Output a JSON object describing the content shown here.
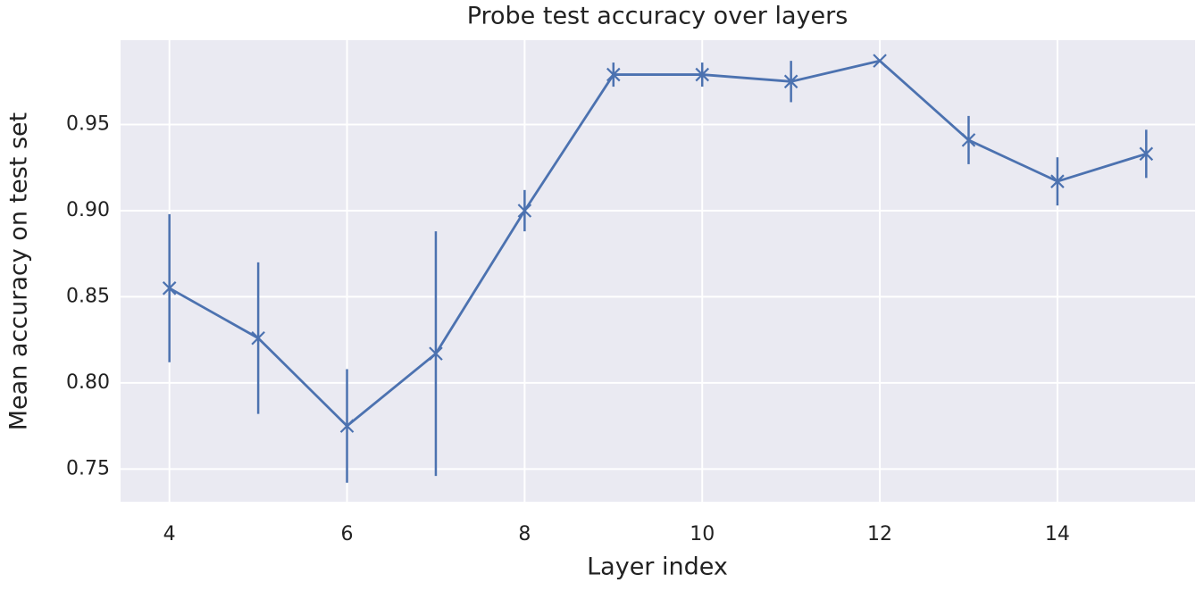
{
  "chart_data": {
    "type": "line",
    "title": "Probe test accuracy over layers",
    "x_label": "Layer index",
    "y_label": "Mean accuracy on test set",
    "x": [
      4,
      5,
      6,
      7,
      8,
      9,
      10,
      11,
      12,
      13,
      14,
      15
    ],
    "values": [
      0.855,
      0.826,
      0.775,
      0.817,
      0.9,
      0.979,
      0.979,
      0.975,
      0.987,
      0.941,
      0.917,
      0.933
    ],
    "errors": [
      0.043,
      0.044,
      0.033,
      0.071,
      0.012,
      0.007,
      0.007,
      0.012,
      0.0,
      0.014,
      0.014,
      0.014
    ],
    "color": "#4c72b0",
    "xlim": [
      3.45,
      15.55
    ],
    "xticks": [
      4,
      6,
      8,
      10,
      12,
      14
    ],
    "ylim": [
      0.731,
      0.999
    ],
    "yticks": [
      {
        "value": 0.75,
        "label": "0.75"
      },
      {
        "value": 0.8,
        "label": "0.80"
      },
      {
        "value": 0.85,
        "label": "0.85"
      },
      {
        "value": 0.9,
        "label": "0.90"
      },
      {
        "value": 0.95,
        "label": "0.95"
      }
    ],
    "grid": true
  }
}
